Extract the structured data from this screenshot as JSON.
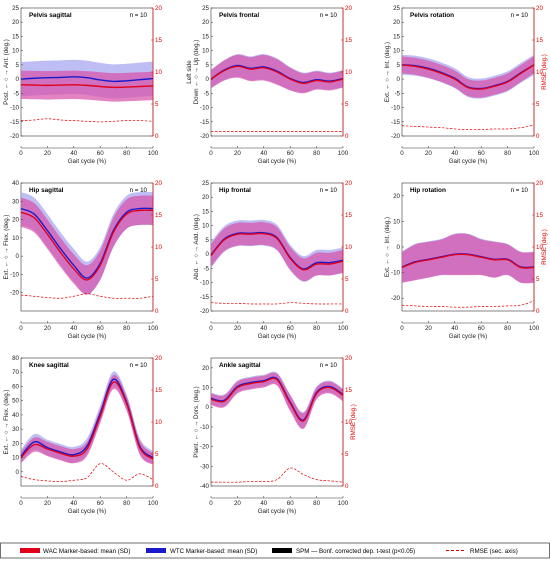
{
  "chart_data": {
    "type": "line",
    "x": [
      0,
      10,
      20,
      30,
      40,
      50,
      60,
      70,
      80,
      90,
      100
    ],
    "xlabel": "Gait cycle (%)",
    "right_axis_label": "RMSE (deg.)",
    "right_ylim": [
      0,
      20
    ],
    "right_ticks": [
      0,
      5,
      10,
      15,
      20
    ],
    "x_ticks": [
      0,
      20,
      40,
      60,
      80,
      100
    ],
    "n_label": "n = 10",
    "legend": {
      "wac": "WAC Marker-based: mean (SD)",
      "wtc": "WTC Marker-based: mean (SD)",
      "spm": "SPM — Bonf. corrected dep. t-test (p<0.05)",
      "rmse": "RMSE (sec. axis)"
    },
    "colors": {
      "wac": "#e0001a",
      "wtc": "#1a1acc",
      "spm": "#000000",
      "rmse": "#e00000",
      "wac_band": "#d94fa8",
      "wtc_band": "#a8a8f0"
    },
    "panels": [
      {
        "title": "Pelvis sagittal",
        "ylabel": "Post. ← ○ → Ant. (deg.)",
        "ylim": [
          -20,
          25
        ],
        "yticks": [
          -20,
          -15,
          -10,
          -5,
          0,
          5,
          10,
          15,
          20,
          25
        ],
        "show_right_label": false,
        "wac_mean": [
          -2,
          -2.1,
          -2.2,
          -2.1,
          -2,
          -2.2,
          -2.6,
          -2.9,
          -2.8,
          -2.6,
          -2.4
        ],
        "wac_sd": [
          5,
          5,
          5,
          5,
          5,
          5,
          5,
          5,
          5,
          5,
          5
        ],
        "wtc_mean": [
          0,
          0.3,
          0.5,
          0.6,
          0.8,
          0.5,
          -0.3,
          -0.8,
          -0.6,
          -0.2,
          0.2
        ],
        "wtc_sd": [
          6,
          6,
          6,
          6,
          6,
          6,
          6,
          6,
          6,
          6,
          6
        ],
        "rmse": [
          2.4,
          2.5,
          2.7,
          2.5,
          2.4,
          2.3,
          2.2,
          2.3,
          2.4,
          2.4,
          2.3
        ]
      },
      {
        "title": "Pelvis frontal",
        "ylabel": "Down ← ○ → Up (deg.)",
        "ylabel2": "Left side",
        "ylim": [
          -20,
          25
        ],
        "yticks": [
          -20,
          -15,
          -10,
          -5,
          0,
          5,
          10,
          15,
          20,
          25
        ],
        "show_right_label": false,
        "wac_mean": [
          0,
          3,
          4.5,
          3.5,
          4,
          2.5,
          0,
          -1.5,
          -0.5,
          -1,
          0
        ],
        "wac_sd": [
          3.2,
          3.5,
          4,
          4.2,
          4.5,
          4.5,
          4,
          3.5,
          3.2,
          3,
          3
        ],
        "wtc_mean": [
          0,
          3.2,
          4.8,
          3.8,
          4.3,
          2.8,
          0.2,
          -1.2,
          -0.2,
          -0.7,
          0.2
        ],
        "wtc_sd": [
          3.2,
          3.5,
          4,
          4.2,
          4.5,
          4.5,
          4,
          3.5,
          3.2,
          3,
          3
        ],
        "rmse": [
          0.7,
          0.7,
          0.7,
          0.7,
          0.7,
          0.7,
          0.7,
          0.7,
          0.7,
          0.7,
          0.7
        ]
      },
      {
        "title": "Pelvis rotation",
        "ylabel": "Ext. ← ○ → Int. (deg.)",
        "ylim": [
          -20,
          25
        ],
        "yticks": [
          -20,
          -15,
          -10,
          -5,
          0,
          5,
          10,
          15,
          20,
          25
        ],
        "show_right_label": true,
        "wac_mean": [
          5,
          4.5,
          3.5,
          2,
          0,
          -3,
          -3.5,
          -2.5,
          -1,
          2,
          5
        ],
        "wac_sd": [
          3,
          3,
          3,
          3,
          3,
          3,
          3,
          3,
          3,
          3,
          3
        ],
        "wtc_mean": [
          5,
          4.7,
          3.8,
          2.3,
          0.3,
          -2.8,
          -3.3,
          -2.3,
          -0.8,
          2.2,
          5
        ],
        "wtc_sd": [
          3.5,
          3.5,
          3.5,
          3.5,
          3.5,
          3.5,
          3.5,
          3.5,
          3.5,
          3.5,
          3.5
        ],
        "rmse": [
          1.6,
          1.5,
          1.4,
          1.3,
          1.1,
          1.0,
          1.0,
          1.1,
          1.1,
          1.3,
          1.7
        ]
      },
      {
        "title": "Hip sagittal",
        "ylabel": "Ext. ← ○ → Flex. (deg.)",
        "ylim": [
          -30,
          40
        ],
        "yticks": [
          -20,
          -10,
          0,
          10,
          20,
          30,
          40
        ],
        "show_right_label": false,
        "wac_mean": [
          24,
          21,
          12,
          2,
          -7,
          -13,
          -5,
          13,
          23,
          25,
          25
        ],
        "wac_sd": [
          8,
          8,
          8,
          8,
          8,
          8,
          8,
          8,
          8,
          8,
          8
        ],
        "wtc_mean": [
          26,
          23,
          14,
          4,
          -5,
          -12,
          -4,
          14,
          24,
          26,
          26
        ],
        "wtc_sd": [
          9,
          9,
          9,
          9,
          9,
          9,
          9,
          9,
          9,
          9,
          9
        ],
        "rmse": [
          2.5,
          2.3,
          2.1,
          2.0,
          2.3,
          2.7,
          2.3,
          2.0,
          2.0,
          2.0,
          2.3
        ]
      },
      {
        "title": "Hip frontal",
        "ylabel": "Abd. ← ○ → Add. (deg.)",
        "ylim": [
          -20,
          25
        ],
        "yticks": [
          -20,
          -15,
          -10,
          -5,
          0,
          5,
          10,
          15,
          20,
          25
        ],
        "show_right_label": false,
        "wac_mean": [
          -0.5,
          5,
          7,
          7,
          7.2,
          5.5,
          -1.5,
          -5.5,
          -3.5,
          -3.5,
          -2.5
        ],
        "wac_sd": [
          4,
          4,
          4,
          4,
          4,
          4,
          4,
          4,
          4,
          4,
          4
        ],
        "wtc_mean": [
          -0.3,
          5.3,
          7.3,
          7.3,
          7.5,
          5.8,
          -1.2,
          -5.2,
          -3,
          -3,
          -2.2
        ],
        "wtc_sd": [
          4.5,
          4.5,
          4.5,
          4.5,
          4.5,
          4.5,
          4.5,
          4.5,
          4.5,
          4.5,
          4.5
        ],
        "rmse": [
          1.3,
          1.2,
          1.2,
          1.1,
          1.1,
          1.1,
          1.3,
          1.2,
          1.1,
          1.1,
          1.1
        ]
      },
      {
        "title": "Hip rotation",
        "ylabel": "Ext. ← ○ → Int. (deg.)",
        "ylim": [
          -25,
          25
        ],
        "yticks": [
          -20,
          -10,
          0,
          10,
          20
        ],
        "show_right_label": true,
        "wac_mean": [
          -8,
          -6,
          -5,
          -4,
          -3,
          -3,
          -4,
          -5,
          -5,
          -8,
          -8
        ],
        "wac_sd": [
          6,
          7,
          7,
          7,
          8,
          8,
          7,
          7,
          6,
          6,
          6
        ],
        "wtc_mean": [
          -7.8,
          -5.8,
          -4.8,
          -3.8,
          -2.8,
          -2.8,
          -3.8,
          -4.8,
          -4.8,
          -7.8,
          -7.8
        ],
        "wtc_sd": [
          6,
          7,
          7,
          7,
          8,
          8,
          7,
          7,
          6,
          6,
          6
        ],
        "rmse": [
          0.9,
          0.8,
          0.7,
          0.7,
          0.6,
          0.6,
          0.7,
          0.7,
          0.8,
          0.9,
          1.6
        ]
      },
      {
        "title": "Knee sagittal",
        "ylabel": "Ext. ← ○ → Flex. (deg.)",
        "ylim": [
          -10,
          80
        ],
        "yticks": [
          0,
          10,
          20,
          30,
          40,
          50,
          60,
          70,
          80
        ],
        "show_right_label": false,
        "wac_mean": [
          10,
          19,
          16,
          13,
          11,
          16,
          39,
          63,
          48,
          17,
          9
        ],
        "wac_sd": [
          4,
          5,
          5,
          5,
          5,
          5,
          5,
          5,
          5,
          5,
          4
        ],
        "wtc_mean": [
          11,
          21,
          17,
          14,
          12,
          18,
          41,
          65,
          49,
          18,
          10
        ],
        "wtc_sd": [
          4.5,
          5.5,
          5.5,
          5.5,
          5.5,
          5.5,
          5.5,
          5.5,
          5.5,
          5.5,
          4.5
        ],
        "rmse": [
          1.5,
          1.0,
          0.8,
          0.7,
          0.9,
          1.3,
          3.5,
          2.2,
          0.9,
          1.9,
          1.0
        ]
      },
      {
        "title": "Ankle sagittal",
        "ylabel": "Plant. ← ○ → Dors. (deg.)",
        "ylim": [
          -40,
          25
        ],
        "yticks": [
          -40,
          -30,
          -20,
          -10,
          0,
          10,
          20
        ],
        "show_right_label": true,
        "wac_mean": [
          4,
          3,
          10,
          12,
          13,
          14,
          2,
          -7,
          7,
          10,
          6
        ],
        "wac_sd": [
          3,
          3,
          3,
          3,
          3,
          3,
          4,
          4,
          3,
          3,
          3
        ],
        "wtc_mean": [
          4.5,
          3.5,
          10.5,
          12.5,
          13.5,
          14.5,
          2.5,
          -6.5,
          7.5,
          10.5,
          6.5
        ],
        "wtc_sd": [
          3,
          3,
          3,
          3,
          3,
          3,
          4,
          4,
          3,
          3,
          3
        ],
        "rmse": [
          0.6,
          0.6,
          0.6,
          0.7,
          0.7,
          1.0,
          2.8,
          1.8,
          1.0,
          0.8,
          0.6
        ]
      }
    ]
  }
}
